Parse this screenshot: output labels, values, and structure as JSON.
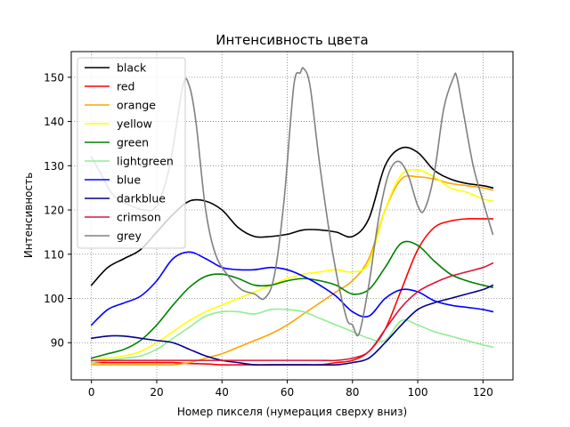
{
  "chart_data": {
    "type": "line",
    "title": "Интенсивность цвета",
    "xlabel": "Номер пикселя (нумерация сверху вниз)",
    "ylabel": "Интенсивность",
    "xlim": [
      -6.2,
      129.2
    ],
    "ylim": [
      81.6,
      155.8
    ],
    "xticks": [
      0,
      20,
      40,
      60,
      80,
      100,
      120
    ],
    "yticks": [
      90,
      100,
      110,
      120,
      130,
      140,
      150
    ],
    "grid": true,
    "legend_position": "top-left",
    "series": [
      {
        "name": "black",
        "color": "#000000",
        "x": [
          0,
          5,
          10,
          15,
          20,
          25,
          30,
          35,
          40,
          45,
          50,
          55,
          60,
          65,
          70,
          75,
          80,
          85,
          90,
          95,
          100,
          105,
          110,
          115,
          120,
          123
        ],
        "y": [
          103,
          107,
          109,
          111,
          115,
          119,
          122,
          122,
          120,
          116,
          114,
          114,
          114.5,
          115.5,
          115.5,
          115,
          114,
          118,
          130,
          134,
          133,
          129,
          127,
          126,
          125.5,
          125
        ]
      },
      {
        "name": "red",
        "color": "#ff0000",
        "x": [
          0,
          5,
          10,
          15,
          20,
          25,
          30,
          35,
          40,
          45,
          50,
          55,
          60,
          65,
          70,
          75,
          80,
          85,
          90,
          95,
          100,
          105,
          110,
          115,
          120,
          123
        ],
        "y": [
          85.5,
          85.5,
          85.5,
          85.5,
          85.5,
          85.5,
          85.3,
          85.2,
          85,
          85,
          85,
          85,
          85,
          85,
          85,
          85.5,
          86,
          88,
          93,
          102,
          111,
          116,
          117.5,
          118,
          118,
          118
        ]
      },
      {
        "name": "orange",
        "color": "#ffa500",
        "x": [
          0,
          5,
          10,
          15,
          20,
          25,
          30,
          35,
          40,
          45,
          50,
          55,
          60,
          65,
          70,
          75,
          80,
          85,
          90,
          95,
          100,
          105,
          110,
          115,
          120,
          123
        ],
        "y": [
          85,
          85,
          85,
          85,
          85,
          85,
          85.5,
          86.5,
          87.5,
          89,
          90.5,
          92,
          94,
          96.5,
          99,
          101.5,
          104,
          109,
          120,
          127,
          127.5,
          127,
          126,
          125.5,
          125,
          124.5
        ]
      },
      {
        "name": "yellow",
        "color": "#ffff00",
        "x": [
          0,
          5,
          10,
          15,
          20,
          25,
          30,
          35,
          40,
          45,
          50,
          55,
          60,
          65,
          70,
          75,
          80,
          85,
          90,
          95,
          100,
          105,
          110,
          115,
          120,
          123
        ],
        "y": [
          86,
          86.5,
          87,
          88,
          90,
          92.5,
          95,
          97,
          98.5,
          100,
          101.5,
          103,
          104.5,
          105.5,
          106,
          106.5,
          106,
          108,
          120,
          128,
          129,
          127.5,
          125,
          124,
          122.5,
          122
        ]
      },
      {
        "name": "green",
        "color": "#008000",
        "x": [
          0,
          5,
          10,
          15,
          20,
          25,
          30,
          35,
          40,
          45,
          50,
          55,
          60,
          65,
          70,
          75,
          80,
          85,
          90,
          95,
          100,
          105,
          110,
          115,
          120,
          123
        ],
        "y": [
          86.5,
          87.5,
          88.5,
          90.5,
          94,
          98.5,
          102.5,
          105,
          105.5,
          104.5,
          103,
          103,
          104,
          104.5,
          104,
          103,
          101,
          102,
          107,
          112.5,
          112,
          108.5,
          105.5,
          104,
          103,
          102.5
        ]
      },
      {
        "name": "lightgreen",
        "color": "#90ee90",
        "x": [
          0,
          5,
          10,
          15,
          20,
          25,
          30,
          35,
          40,
          45,
          50,
          55,
          60,
          65,
          70,
          75,
          80,
          85,
          90,
          95,
          100,
          105,
          110,
          115,
          120,
          123
        ],
        "y": [
          85.5,
          86,
          86.5,
          87,
          88.5,
          91,
          93.5,
          96,
          97,
          97,
          96.5,
          97.5,
          97.5,
          97,
          95.5,
          94,
          92.5,
          91,
          90.5,
          95,
          94,
          92.5,
          91.5,
          90.5,
          89.5,
          89
        ]
      },
      {
        "name": "blue",
        "color": "#0000ff",
        "x": [
          0,
          5,
          10,
          15,
          20,
          25,
          30,
          35,
          40,
          45,
          50,
          55,
          60,
          65,
          70,
          75,
          80,
          85,
          90,
          95,
          100,
          105,
          110,
          115,
          120,
          123
        ],
        "y": [
          94,
          97.5,
          99,
          100.5,
          104,
          109,
          110.5,
          109,
          107,
          106.5,
          106.5,
          107,
          106.5,
          105,
          103,
          100.5,
          97,
          96,
          100,
          102,
          101.5,
          99.5,
          98.5,
          98,
          97.5,
          97
        ]
      },
      {
        "name": "darkblue",
        "color": "#00008b",
        "x": [
          0,
          5,
          10,
          15,
          20,
          25,
          30,
          35,
          40,
          45,
          50,
          55,
          60,
          65,
          70,
          75,
          80,
          85,
          90,
          95,
          100,
          105,
          110,
          115,
          120,
          123
        ],
        "y": [
          91,
          91.5,
          91.5,
          91,
          90.5,
          90,
          88.5,
          87,
          86,
          85.5,
          85,
          85,
          85,
          85,
          85,
          85,
          85.5,
          86.5,
          90,
          94,
          97.5,
          99,
          100,
          101,
          102,
          103
        ]
      },
      {
        "name": "crimson",
        "color": "#dc143c",
        "x": [
          0,
          5,
          10,
          15,
          20,
          25,
          30,
          35,
          40,
          45,
          50,
          55,
          60,
          65,
          70,
          75,
          80,
          85,
          90,
          95,
          100,
          105,
          110,
          115,
          120,
          123
        ],
        "y": [
          86,
          86,
          86,
          86,
          86,
          86,
          86,
          86,
          86,
          86,
          86,
          86,
          86,
          86,
          86,
          86,
          86.5,
          88,
          93,
          98,
          101.5,
          103.5,
          105,
          106,
          107,
          108
        ]
      },
      {
        "name": "grey",
        "color": "#808080",
        "x": [
          0,
          3,
          6,
          9,
          12,
          16,
          20,
          24,
          28,
          30,
          32,
          35,
          38,
          42,
          46,
          50,
          53,
          56,
          59,
          62,
          64,
          65,
          67,
          70,
          74,
          78,
          80,
          82,
          85,
          88,
          91,
          94,
          97,
          100,
          102,
          105,
          108,
          111,
          112,
          114,
          117,
          120,
          123
        ],
        "y": [
          132,
          128,
          124,
          122,
          121,
          120,
          121,
          130,
          148,
          148,
          140,
          120,
          110,
          105,
          102,
          101,
          100,
          105,
          122,
          148,
          151,
          152,
          148,
          130,
          110,
          96,
          94,
          92,
          103,
          118,
          128,
          131,
          128,
          121,
          120,
          128,
          143,
          150,
          150,
          142,
          130,
          122,
          114.5
        ]
      }
    ]
  }
}
